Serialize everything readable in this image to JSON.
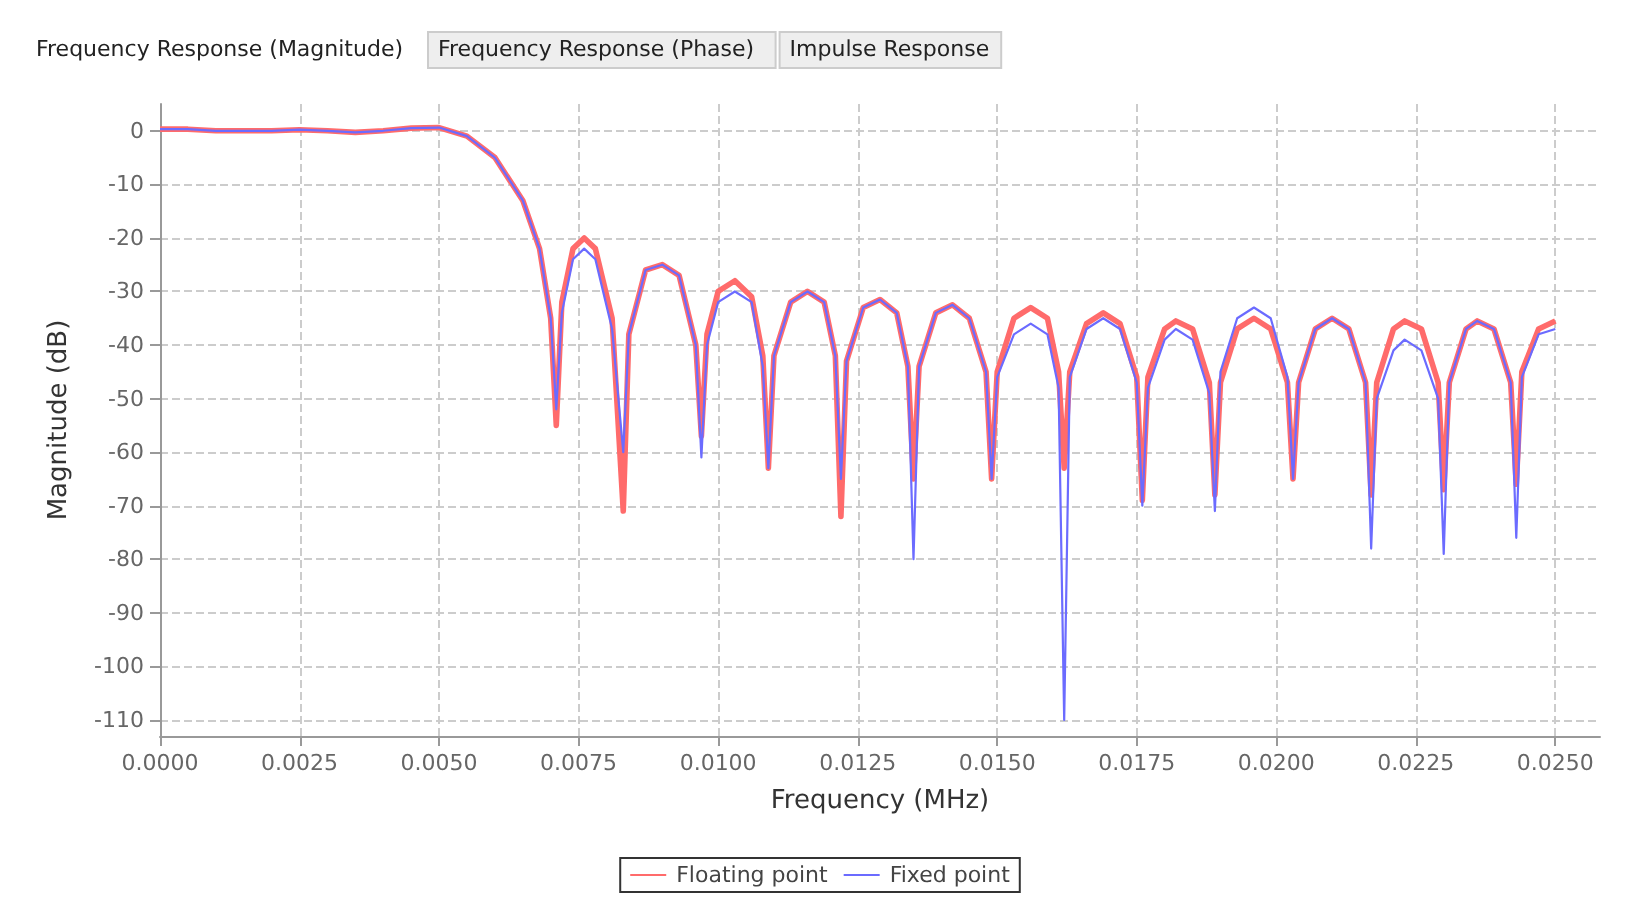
{
  "chart_data": {
    "type": "line",
    "title": "Frequency Response (Magnitude)",
    "annotations": [
      "Frequency Response (Phase)",
      "Impulse Response"
    ],
    "xlabel": "Frequency (MHz)",
    "ylabel": "Magnitude (dB)",
    "x": [
      0,
      0.0005,
      0.001,
      0.002,
      0.0025,
      0.003,
      0.0035,
      0.004,
      0.0045,
      0.005,
      0.0055,
      0.006,
      0.0065,
      0.0068,
      0.007,
      0.0071,
      0.0072,
      0.0074,
      0.0076,
      0.0078,
      0.0081,
      0.0083,
      0.0084,
      0.0087,
      0.009,
      0.0093,
      0.0096,
      0.0097,
      0.0098,
      0.01,
      0.0103,
      0.0106,
      0.0108,
      0.0109,
      0.011,
      0.0113,
      0.0116,
      0.0119,
      0.0121,
      0.0122,
      0.0123,
      0.0126,
      0.0129,
      0.0132,
      0.0134,
      0.0135,
      0.0136,
      0.0139,
      0.0142,
      0.0145,
      0.0148,
      0.0149,
      0.015,
      0.0153,
      0.0156,
      0.0159,
      0.0161,
      0.0162,
      0.0163,
      0.0166,
      0.0169,
      0.0172,
      0.0175,
      0.0176,
      0.0177,
      0.018,
      0.0182,
      0.0185,
      0.0188,
      0.0189,
      0.019,
      0.0193,
      0.0196,
      0.0199,
      0.0202,
      0.0203,
      0.0204,
      0.0207,
      0.021,
      0.0213,
      0.0216,
      0.0217,
      0.0218,
      0.0221,
      0.0223,
      0.0226,
      0.0229,
      0.023,
      0.0231,
      0.0234,
      0.0236,
      0.0239,
      0.0242,
      0.0243,
      0.0244,
      0.0247,
      0.025
    ],
    "series": [
      {
        "name": "Floating point",
        "color": "#ff6b6b",
        "values": [
          0.3,
          0.3,
          0,
          0,
          0.2,
          0,
          -0.3,
          0,
          0.5,
          0.6,
          -1,
          -5,
          -13,
          -22,
          -35,
          -55,
          -32,
          -22,
          -20,
          -22,
          -35,
          -71,
          -38,
          -26,
          -25,
          -27,
          -40,
          -57,
          -38,
          -30,
          -28,
          -31,
          -42,
          -63,
          -42,
          -32,
          -30,
          -32,
          -42,
          -72,
          -43,
          -33,
          -31.5,
          -34,
          -44,
          -65,
          -44,
          -34,
          -32.5,
          -35,
          -45,
          -65,
          -45,
          -35,
          -33,
          -35,
          -45,
          -63,
          -45,
          -36,
          -34,
          -36,
          -46,
          -69,
          -46,
          -37,
          -35.5,
          -37,
          -47,
          -68,
          -47,
          -37,
          -35,
          -37,
          -47,
          -65,
          -47,
          -37,
          -35,
          -37,
          -47,
          -68,
          -47,
          -37,
          -35.5,
          -37,
          -47,
          -67,
          -47,
          -37,
          -35.5,
          -37,
          -47,
          -66,
          -45,
          -37,
          -35.5
        ]
      },
      {
        "name": "Fixed point",
        "color": "#6b6bff",
        "values": [
          0.3,
          0.3,
          0,
          0,
          0.2,
          0,
          -0.3,
          0,
          0.5,
          0.6,
          -1,
          -5,
          -13,
          -22,
          -35,
          -52,
          -34,
          -24,
          -22,
          -24,
          -37,
          -60,
          -38,
          -26,
          -25,
          -27,
          -40,
          -61,
          -40,
          -32,
          -30,
          -32,
          -44,
          -63,
          -42,
          -32,
          -30,
          -32,
          -42,
          -65,
          -43,
          -33,
          -31.5,
          -34,
          -44,
          -80,
          -44,
          -34,
          -32.5,
          -35,
          -45,
          -65,
          -46,
          -38,
          -36,
          -38,
          -48,
          -110,
          -46,
          -37,
          -35,
          -37,
          -47,
          -70,
          -48,
          -39,
          -37,
          -39,
          -49,
          -71,
          -45,
          -35,
          -33,
          -35,
          -46,
          -65,
          -47,
          -37,
          -35,
          -37,
          -47,
          -78,
          -50,
          -41,
          -39,
          -41,
          -50,
          -79,
          -47,
          -37,
          -35.5,
          -37,
          -47,
          -76,
          -46,
          -38,
          -37
        ]
      }
    ],
    "xlim": [
      0,
      0.0258
    ],
    "xticks": [
      {
        "value": 0,
        "label": "0.0000"
      },
      {
        "value": 0.0025,
        "label": "0.0025"
      },
      {
        "value": 0.005,
        "label": "0.0050"
      },
      {
        "value": 0.0075,
        "label": "0.0075"
      },
      {
        "value": 0.01,
        "label": "0.0100"
      },
      {
        "value": 0.0125,
        "label": "0.0125"
      },
      {
        "value": 0.015,
        "label": "0.0150"
      },
      {
        "value": 0.0175,
        "label": "0.0175"
      },
      {
        "value": 0.02,
        "label": "0.0200"
      },
      {
        "value": 0.0225,
        "label": "0.0225"
      },
      {
        "value": 0.025,
        "label": "0.0250"
      }
    ],
    "ylim": [
      -113,
      5
    ],
    "yticks": [
      0,
      -10,
      -20,
      -30,
      -40,
      -50,
      -60,
      -70,
      -80,
      -90,
      -100,
      -110
    ],
    "grid": true,
    "legend": "bottom",
    "marker": "none",
    "line_style": "solid"
  }
}
